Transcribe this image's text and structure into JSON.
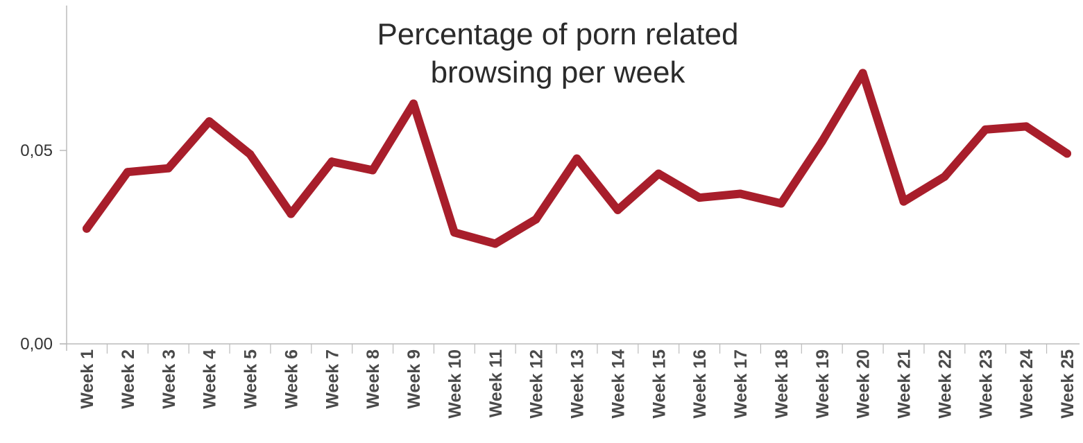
{
  "chart_data": {
    "type": "line",
    "title_lines": [
      "Percentage of porn related",
      "browsing per week"
    ],
    "xlabel": "",
    "ylabel": "",
    "categories": [
      "Week 1",
      "Week 2",
      "Week 3",
      "Week 4",
      "Week 5",
      "Week 6",
      "Week 7",
      "Week 8",
      "Week 9",
      "Week 10",
      "Week 11",
      "Week 12",
      "Week 13",
      "Week 14",
      "Week 15",
      "Week 16",
      "Week 17",
      "Week 18",
      "Week 19",
      "Week 20",
      "Week 21",
      "Week 22",
      "Week 23",
      "Week 24",
      "Week 25"
    ],
    "series": [
      {
        "values": [
          0.0298,
          0.0444,
          0.0454,
          0.0575,
          0.049,
          0.0336,
          0.0471,
          0.0449,
          0.0621,
          0.0288,
          0.0259,
          0.0322,
          0.0479,
          0.0346,
          0.044,
          0.0378,
          0.0388,
          0.0363,
          0.0523,
          0.07,
          0.0368,
          0.0432,
          0.0554,
          0.0562,
          0.0492
        ]
      }
    ],
    "yticks": [
      {
        "value": 0.0,
        "label": "0,00"
      },
      {
        "value": 0.05,
        "label": "0,05"
      }
    ],
    "ylim": [
      0,
      0.092
    ],
    "grid": false,
    "legend": "none",
    "colors": {
      "line": "#a81e2b",
      "axis": "#bbbbbb",
      "background": "#ffffff"
    }
  }
}
